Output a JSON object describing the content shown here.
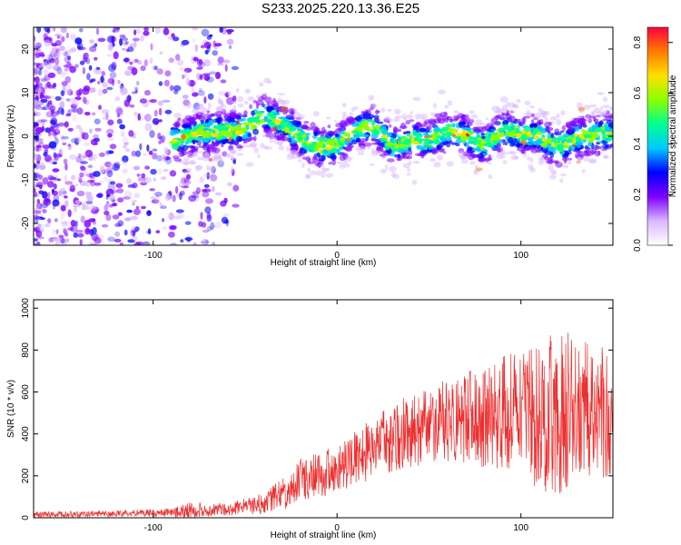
{
  "title": "S233.2025.220.13.36.E25",
  "chart_data": [
    {
      "type": "heatmap",
      "xlabel": "Height of straight line (km)",
      "ylabel": "Frequency (Hz)",
      "xlim": [
        -165,
        150
      ],
      "ylim": [
        -25,
        25
      ],
      "xticks": [
        -100,
        0,
        100
      ],
      "yticks": [
        -20,
        -10,
        0,
        10,
        20
      ],
      "colorbar": {
        "label": "Normalized spectral amplitude",
        "range": [
          0.0,
          0.86
        ],
        "ticks": [
          "0.0",
          "0.2",
          "0.4",
          "0.6",
          "0.8"
        ],
        "colormap": [
          "#ffffff",
          "#d9b8ff",
          "#7f00ff",
          "#0000ff",
          "#00c8ff",
          "#00ff90",
          "#8cff00",
          "#ffe000",
          "#ff7a00",
          "#ff0040"
        ]
      },
      "ridge": {
        "description": "band centered near 0 Hz, noisy diffuse energy below -70 km",
        "x": [
          -80,
          -60,
          -50,
          -40,
          -30,
          -20,
          -10,
          0,
          10,
          20,
          30,
          40,
          50,
          60,
          70,
          80,
          90,
          100,
          110,
          120,
          130,
          140,
          150
        ],
        "y": [
          -1,
          2,
          3,
          4,
          2,
          0,
          -1,
          -2,
          0,
          2,
          -1,
          0,
          -2,
          0,
          1,
          -1,
          1,
          -1,
          0,
          -1,
          0,
          -1,
          0
        ]
      }
    },
    {
      "type": "line",
      "xlabel": "Height of straight line (km)",
      "ylabel": "SNR (10 * v/v)",
      "xlim": [
        -165,
        150
      ],
      "ylim": [
        0,
        1040
      ],
      "xticks": [
        -100,
        0,
        100
      ],
      "yticks": [
        0,
        200,
        400,
        600,
        800,
        1000
      ],
      "color": "#ee2f2f",
      "envelope": {
        "x": [
          -165,
          -120,
          -90,
          -80,
          -60,
          -40,
          -30,
          -20,
          0,
          20,
          40,
          60,
          80,
          100,
          110,
          120,
          130,
          150
        ],
        "mean": [
          15,
          20,
          25,
          35,
          40,
          70,
          110,
          180,
          230,
          330,
          420,
          460,
          490,
          500,
          480,
          500,
          520,
          500
        ],
        "amp": [
          15,
          15,
          20,
          40,
          30,
          50,
          80,
          100,
          120,
          150,
          180,
          200,
          250,
          300,
          380,
          400,
          350,
          300
        ]
      }
    }
  ]
}
